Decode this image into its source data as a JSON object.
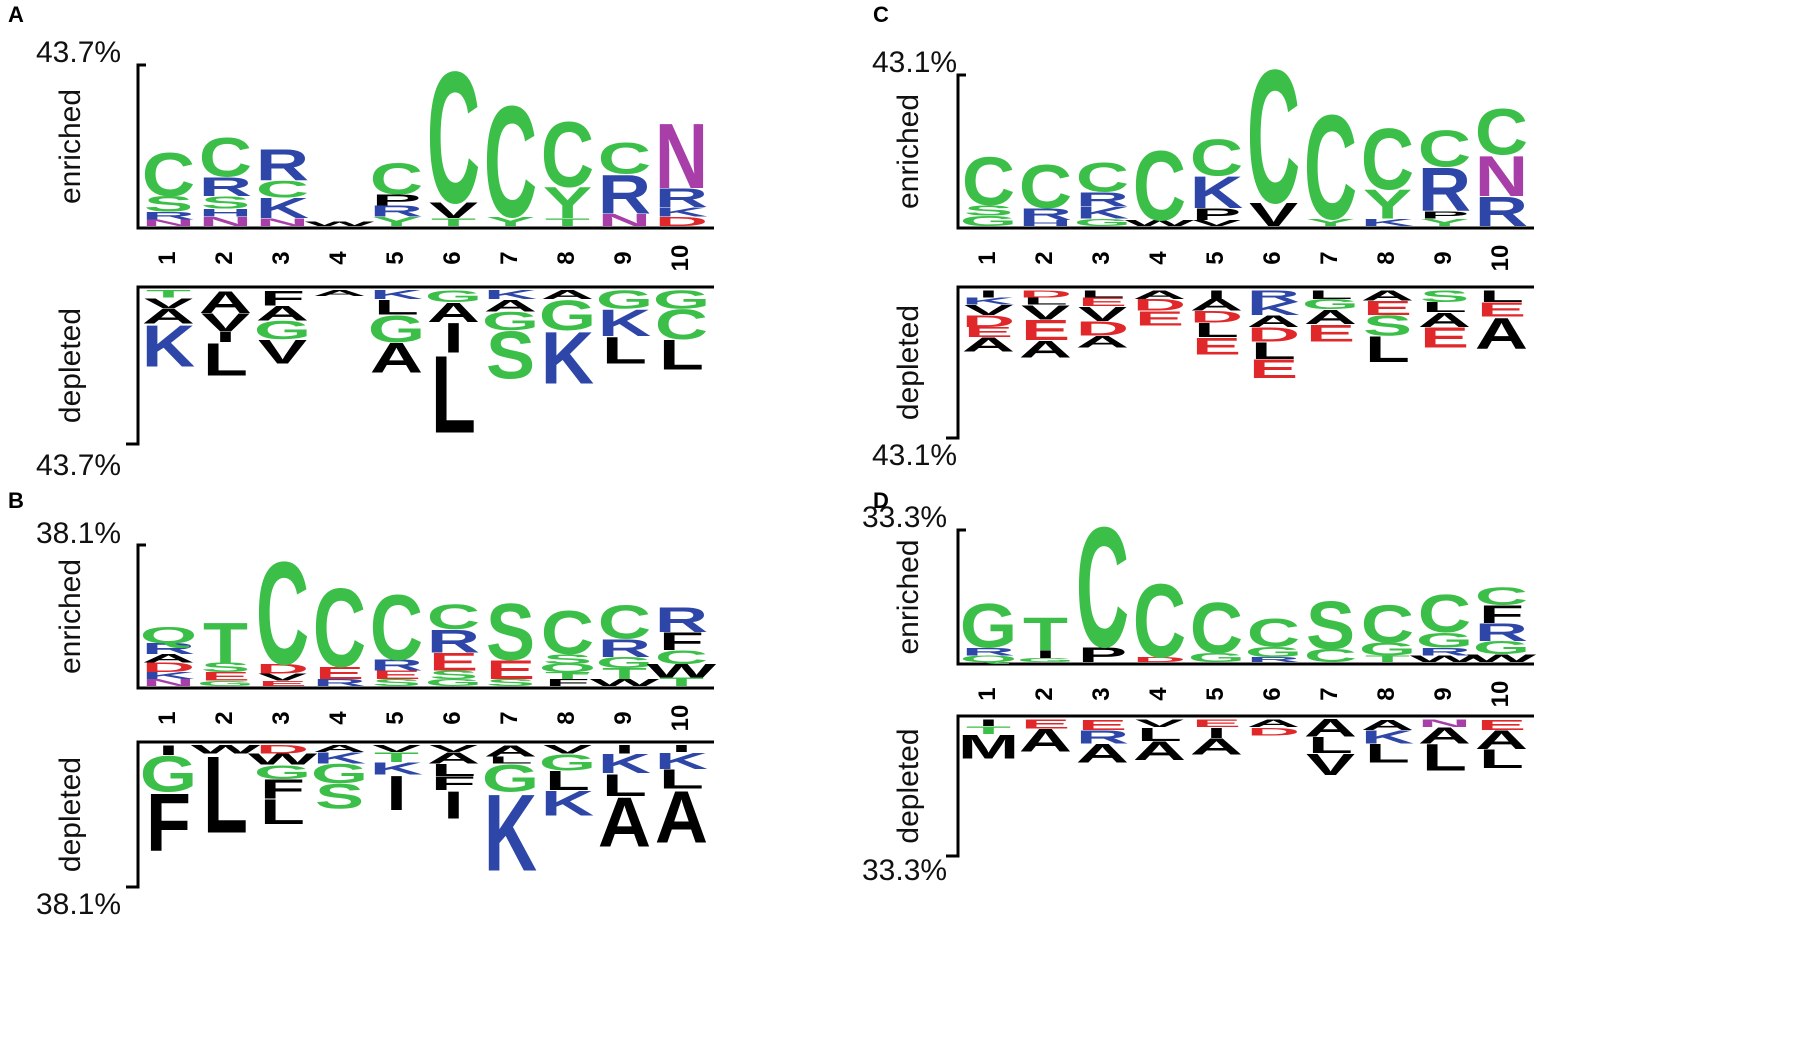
{
  "colors": {
    "polar": "#3cbf49",
    "basic": "#2d46a8",
    "acidic": "#e0282b",
    "hydrophobic": "#000000",
    "amide": "#a83fa8"
  },
  "panels": [
    {
      "letter": "A",
      "scale_label_top": "43.7%",
      "scale_label_bottom": "43.7%",
      "enriched_label": "enriched",
      "depleted_label": "depleted",
      "positions": [
        "1",
        "2",
        "3",
        "4",
        "5",
        "6",
        "7",
        "8",
        "9",
        "10"
      ],
      "enriched": [
        [
          [
            "N",
            0.04
          ],
          [
            "R",
            0.05
          ],
          [
            "S",
            0.1
          ],
          [
            "C",
            0.28
          ]
        ],
        [
          [
            "N",
            0.06
          ],
          [
            "H",
            0.05
          ],
          [
            "S",
            0.08
          ],
          [
            "R",
            0.12
          ],
          [
            "C",
            0.25
          ]
        ],
        [
          [
            "N",
            0.05
          ],
          [
            "K",
            0.13
          ],
          [
            "C",
            0.11
          ],
          [
            "R",
            0.2
          ]
        ],
        [
          [
            "W",
            0.03
          ]
        ],
        [
          [
            "Y",
            0.06
          ],
          [
            "R",
            0.07
          ],
          [
            "P",
            0.07
          ],
          [
            "C",
            0.2
          ]
        ],
        [
          [
            "T",
            0.05
          ],
          [
            "V",
            0.1
          ],
          [
            "C",
            0.85
          ]
        ],
        [
          [
            "Y",
            0.06
          ],
          [
            "C",
            0.72
          ]
        ],
        [
          [
            "T",
            0.05
          ],
          [
            "Y",
            0.2
          ],
          [
            "C",
            0.42
          ]
        ],
        [
          [
            "N",
            0.08
          ],
          [
            "R",
            0.25
          ],
          [
            "C",
            0.2
          ]
        ],
        [
          [
            "D",
            0.06
          ],
          [
            "K",
            0.06
          ],
          [
            "R",
            0.12
          ],
          [
            "N",
            0.42
          ]
        ]
      ],
      "depleted": [
        [
          [
            "T",
            0.05
          ],
          [
            "V",
            0.07
          ],
          [
            "A",
            0.1
          ],
          [
            "K",
            0.28
          ]
        ],
        [
          [
            "A",
            0.15
          ],
          [
            "V",
            0.12
          ],
          [
            "I",
            0.07
          ],
          [
            "L",
            0.22
          ]
        ],
        [
          [
            "F",
            0.1
          ],
          [
            "A",
            0.1
          ],
          [
            "G",
            0.12
          ],
          [
            "V",
            0.16
          ]
        ],
        [
          [
            "A",
            0.04
          ]
        ],
        [
          [
            "K",
            0.06
          ],
          [
            "L",
            0.1
          ],
          [
            "G",
            0.18
          ],
          [
            "A",
            0.2
          ]
        ],
        [
          [
            "G",
            0.08
          ],
          [
            "A",
            0.13
          ],
          [
            "I",
            0.2
          ],
          [
            "L",
            0.52
          ]
        ],
        [
          [
            "K",
            0.06
          ],
          [
            "A",
            0.08
          ],
          [
            "G",
            0.12
          ],
          [
            "S",
            0.32
          ]
        ],
        [
          [
            "A",
            0.06
          ],
          [
            "G",
            0.2
          ],
          [
            "K",
            0.35
          ]
        ],
        [
          [
            "G",
            0.12
          ],
          [
            "K",
            0.18
          ],
          [
            "L",
            0.18
          ]
        ],
        [
          [
            "G",
            0.12
          ],
          [
            "C",
            0.2
          ],
          [
            "L",
            0.2
          ]
        ]
      ]
    },
    {
      "letter": "B",
      "scale_label_top": "38.1%",
      "scale_label_bottom": "38.1%",
      "enriched_label": "enriched",
      "depleted_label": "depleted",
      "positions": [
        "1",
        "2",
        "3",
        "4",
        "5",
        "6",
        "7",
        "8",
        "9",
        "10"
      ],
      "enriched": [
        [
          [
            "N",
            0.05
          ],
          [
            "K",
            0.05
          ],
          [
            "D",
            0.07
          ],
          [
            "A",
            0.06
          ],
          [
            "R",
            0.08
          ],
          [
            "Q",
            0.12
          ]
        ],
        [
          [
            "G",
            0.04
          ],
          [
            "E",
            0.06
          ],
          [
            "S",
            0.07
          ],
          [
            "T",
            0.3
          ]
        ],
        [
          [
            "E",
            0.04
          ],
          [
            "V",
            0.05
          ],
          [
            "D",
            0.07
          ],
          [
            "C",
            0.76
          ]
        ],
        [
          [
            "R",
            0.05
          ],
          [
            "E",
            0.09
          ],
          [
            "C",
            0.58
          ]
        ],
        [
          [
            "S",
            0.05
          ],
          [
            "E",
            0.06
          ],
          [
            "R",
            0.08
          ],
          [
            "C",
            0.48
          ]
        ],
        [
          [
            "G",
            0.05
          ],
          [
            "S",
            0.06
          ],
          [
            "E",
            0.13
          ],
          [
            "R",
            0.17
          ],
          [
            "C",
            0.18
          ]
        ],
        [
          [
            "S",
            0.05
          ],
          [
            "E",
            0.14
          ],
          [
            "S",
            0.42
          ]
        ],
        [
          [
            "F",
            0.05
          ],
          [
            "T",
            0.05
          ],
          [
            "Q",
            0.06
          ],
          [
            "S",
            0.07
          ],
          [
            "C",
            0.32
          ]
        ],
        [
          [
            "W",
            0.05
          ],
          [
            "T",
            0.08
          ],
          [
            "G",
            0.08
          ],
          [
            "R",
            0.13
          ],
          [
            "C",
            0.25
          ]
        ],
        [
          [
            "T",
            0.06
          ],
          [
            "W",
            0.1
          ],
          [
            "C",
            0.1
          ],
          [
            "F",
            0.13
          ],
          [
            "R",
            0.18
          ]
        ]
      ],
      "depleted": [
        [
          [
            "I",
            0.07
          ],
          [
            "G",
            0.26
          ],
          [
            "F",
            0.42
          ]
        ],
        [
          [
            "W",
            0.06
          ],
          [
            "L",
            0.56
          ]
        ],
        [
          [
            "D",
            0.06
          ],
          [
            "W",
            0.08
          ],
          [
            "G",
            0.1
          ],
          [
            "F",
            0.14
          ],
          [
            "L",
            0.18
          ]
        ],
        [
          [
            "A",
            0.05
          ],
          [
            "K",
            0.08
          ],
          [
            "G",
            0.14
          ],
          [
            "S",
            0.18
          ]
        ],
        [
          [
            "V",
            0.05
          ],
          [
            "T",
            0.07
          ],
          [
            "K",
            0.09
          ],
          [
            "I",
            0.25
          ]
        ],
        [
          [
            "V",
            0.05
          ],
          [
            "A",
            0.08
          ],
          [
            "L",
            0.09
          ],
          [
            "F",
            0.1
          ],
          [
            "I",
            0.2
          ]
        ],
        [
          [
            "A",
            0.08
          ],
          [
            "L",
            0.05
          ],
          [
            "G",
            0.2
          ],
          [
            "K",
            0.56
          ]
        ],
        [
          [
            "V",
            0.06
          ],
          [
            "G",
            0.12
          ],
          [
            "L",
            0.14
          ],
          [
            "K",
            0.18
          ]
        ],
        [
          [
            "I",
            0.06
          ],
          [
            "K",
            0.14
          ],
          [
            "L",
            0.16
          ],
          [
            "A",
            0.36
          ]
        ],
        [
          [
            "I",
            0.05
          ],
          [
            "K",
            0.12
          ],
          [
            "L",
            0.14
          ],
          [
            "A",
            0.38
          ]
        ]
      ]
    },
    {
      "letter": "C",
      "scale_label_top": "43.1%",
      "scale_label_bottom": "43.1%",
      "enriched_label": "enriched",
      "depleted_label": "depleted",
      "positions": [
        "1",
        "2",
        "3",
        "4",
        "5",
        "6",
        "7",
        "8",
        "9",
        "10"
      ],
      "enriched": [
        [
          [
            "G",
            0.07
          ],
          [
            "S",
            0.07
          ],
          [
            "C",
            0.33
          ]
        ],
        [
          [
            "H",
            0.04
          ],
          [
            "R",
            0.08
          ],
          [
            "C",
            0.3
          ]
        ],
        [
          [
            "G",
            0.05
          ],
          [
            "K",
            0.08
          ],
          [
            "R",
            0.1
          ],
          [
            "C",
            0.2
          ]
        ],
        [
          [
            "W",
            0.04
          ],
          [
            "C",
            0.48
          ]
        ],
        [
          [
            "V",
            0.04
          ],
          [
            "P",
            0.08
          ],
          [
            "K",
            0.22
          ],
          [
            "C",
            0.25
          ]
        ],
        [
          [
            "V",
            0.16
          ],
          [
            "C",
            0.92
          ]
        ],
        [
          [
            "Y",
            0.05
          ],
          [
            "C",
            0.72
          ]
        ],
        [
          [
            "K",
            0.05
          ],
          [
            "Y",
            0.2
          ],
          [
            "C",
            0.42
          ]
        ],
        [
          [
            "Y",
            0.05
          ],
          [
            "P",
            0.05
          ],
          [
            "R",
            0.3
          ],
          [
            "C",
            0.25
          ]
        ],
        [
          [
            "R",
            0.2
          ],
          [
            "N",
            0.28
          ],
          [
            "C",
            0.32
          ]
        ]
      ],
      "depleted": [
        [
          [
            "I",
            0.05
          ],
          [
            "K",
            0.05
          ],
          [
            "V",
            0.07
          ],
          [
            "D",
            0.08
          ],
          [
            "E",
            0.07
          ],
          [
            "A",
            0.1
          ]
        ],
        [
          [
            "D",
            0.05
          ],
          [
            "L",
            0.05
          ],
          [
            "V",
            0.1
          ],
          [
            "E",
            0.14
          ],
          [
            "A",
            0.12
          ]
        ],
        [
          [
            "L",
            0.05
          ],
          [
            "E",
            0.06
          ],
          [
            "V",
            0.1
          ],
          [
            "D",
            0.1
          ],
          [
            "A",
            0.08
          ]
        ],
        [
          [
            "A",
            0.06
          ],
          [
            "D",
            0.08
          ],
          [
            "E",
            0.1
          ]
        ],
        [
          [
            "I",
            0.06
          ],
          [
            "A",
            0.08
          ],
          [
            "D",
            0.08
          ],
          [
            "L",
            0.1
          ],
          [
            "E",
            0.12
          ]
        ],
        [
          [
            "R",
            0.08
          ],
          [
            "K",
            0.09
          ],
          [
            "A",
            0.08
          ],
          [
            "D",
            0.1
          ],
          [
            "L",
            0.12
          ],
          [
            "E",
            0.13
          ]
        ],
        [
          [
            "L",
            0.06
          ],
          [
            "G",
            0.07
          ],
          [
            "A",
            0.1
          ],
          [
            "E",
            0.12
          ]
        ],
        [
          [
            "A",
            0.07
          ],
          [
            "E",
            0.1
          ],
          [
            "S",
            0.14
          ],
          [
            "L",
            0.18
          ]
        ],
        [
          [
            "S",
            0.08
          ],
          [
            "L",
            0.07
          ],
          [
            "A",
            0.1
          ],
          [
            "E",
            0.14
          ]
        ],
        [
          [
            "L",
            0.08
          ],
          [
            "E",
            0.1
          ],
          [
            "A",
            0.22
          ]
        ]
      ]
    },
    {
      "letter": "D",
      "scale_label_top": "33.3%",
      "scale_label_bottom": "33.3%",
      "enriched_label": "enriched",
      "depleted_label": "depleted",
      "positions": [
        "1",
        "2",
        "3",
        "4",
        "5",
        "6",
        "7",
        "8",
        "9",
        "10"
      ],
      "enriched": [
        [
          [
            "Q",
            0.05
          ],
          [
            "R",
            0.06
          ],
          [
            "G",
            0.35
          ]
        ],
        [
          [
            "G",
            0.03
          ],
          [
            "I",
            0.06
          ],
          [
            "T",
            0.26
          ]
        ],
        [
          [
            "P",
            0.12
          ],
          [
            "C",
            0.95
          ]
        ],
        [
          [
            "D",
            0.04
          ],
          [
            "C",
            0.58
          ]
        ],
        [
          [
            "G",
            0.07
          ],
          [
            "C",
            0.4
          ]
        ],
        [
          [
            "R",
            0.04
          ],
          [
            "G",
            0.08
          ],
          [
            "C",
            0.22
          ]
        ],
        [
          [
            "C",
            0.1
          ],
          [
            "S",
            0.38
          ]
        ],
        [
          [
            "T",
            0.05
          ],
          [
            "G",
            0.1
          ],
          [
            "C",
            0.3
          ]
        ],
        [
          [
            "W",
            0.05
          ],
          [
            "R",
            0.06
          ],
          [
            "G",
            0.12
          ],
          [
            "C",
            0.3
          ]
        ],
        [
          [
            "W",
            0.06
          ],
          [
            "G",
            0.1
          ],
          [
            "R",
            0.14
          ],
          [
            "F",
            0.14
          ],
          [
            "C",
            0.14
          ]
        ]
      ],
      "depleted": [
        [
          [
            "I",
            0.05
          ],
          [
            "T",
            0.06
          ],
          [
            "M",
            0.18
          ]
        ],
        [
          [
            "E",
            0.07
          ],
          [
            "A",
            0.17
          ]
        ],
        [
          [
            "E",
            0.08
          ],
          [
            "R",
            0.1
          ],
          [
            "A",
            0.14
          ]
        ],
        [
          [
            "V",
            0.06
          ],
          [
            "L",
            0.1
          ],
          [
            "A",
            0.14
          ]
        ],
        [
          [
            "E",
            0.06
          ],
          [
            "I",
            0.08
          ],
          [
            "A",
            0.12
          ]
        ],
        [
          [
            "A",
            0.06
          ],
          [
            "D",
            0.06
          ]
        ],
        [
          [
            "A",
            0.13
          ],
          [
            "L",
            0.12
          ],
          [
            "V",
            0.16
          ]
        ],
        [
          [
            "A",
            0.08
          ],
          [
            "K",
            0.1
          ],
          [
            "L",
            0.14
          ]
        ],
        [
          [
            "N",
            0.06
          ],
          [
            "A",
            0.12
          ],
          [
            "L",
            0.2
          ]
        ],
        [
          [
            "E",
            0.08
          ],
          [
            "A",
            0.14
          ],
          [
            "L",
            0.14
          ]
        ]
      ]
    }
  ]
}
